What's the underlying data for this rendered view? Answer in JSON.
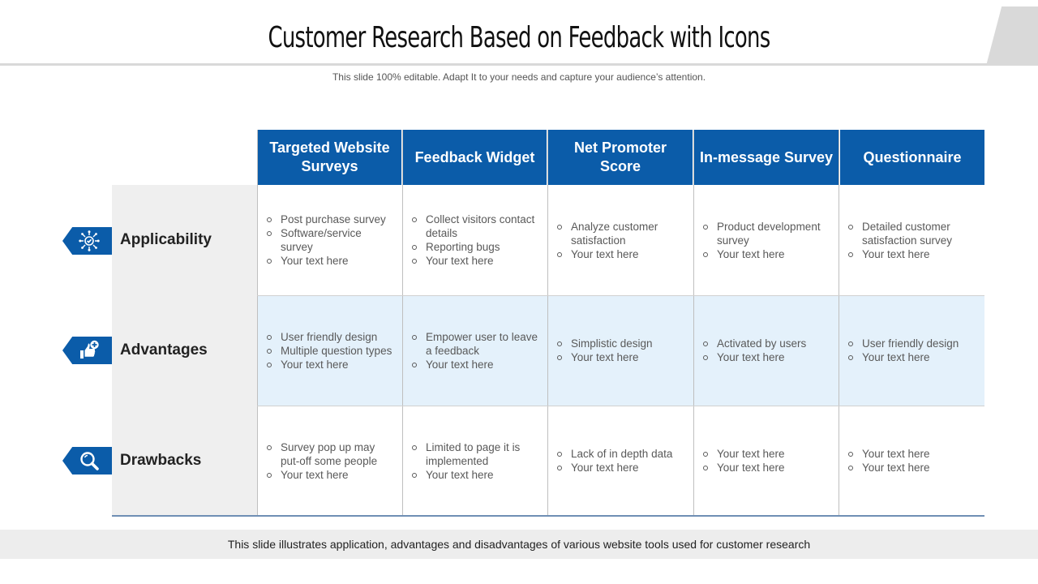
{
  "title": "Customer Research Based on Feedback with Icons",
  "subtitle": "This slide 100% editable. Adapt  It to your needs and capture your audience’s attention.",
  "columns": [
    "Targeted Website Surveys",
    "Feedback Widget",
    "Net Promoter Score",
    "In-message Survey",
    "Questionnaire"
  ],
  "rows": [
    {
      "label": "Applicability",
      "icon": "target-network-icon",
      "cells": [
        [
          "Post purchase survey",
          "Software/service survey",
          "Your text here"
        ],
        [
          "Collect visitors contact details",
          "Reporting bugs",
          "Your text here"
        ],
        [
          "Analyze customer satisfaction",
          "Your text here"
        ],
        [
          "Product development survey",
          "Your text here"
        ],
        [
          "Detailed customer satisfaction survey",
          "Your text here"
        ]
      ]
    },
    {
      "label": "Advantages",
      "icon": "thumbs-up-plus-icon",
      "cells": [
        [
          "User friendly design",
          "Multiple question types",
          "Your text here"
        ],
        [
          "Empower user to leave a feedback",
          "Your text here"
        ],
        [
          "Simplistic design",
          "Your text here"
        ],
        [
          "Activated by users",
          "Your text here"
        ],
        [
          "User friendly design",
          "Your text here"
        ]
      ]
    },
    {
      "label": "Drawbacks",
      "icon": "magnifier-icon",
      "cells": [
        [
          "Survey pop up may put-off some people",
          "Your text here"
        ],
        [
          "Limited to page it is implemented",
          "Your text here"
        ],
        [
          "Lack of in depth data",
          "Your text here"
        ],
        [
          "Your text here",
          "Your text here"
        ],
        [
          "Your text here",
          "Your text here"
        ]
      ]
    }
  ],
  "footer": "This slide illustrates application, advantages and disadvantages of various website tools used for customer research",
  "colors": {
    "accent": "#0b5ca9",
    "band": "#e4f1fb",
    "label_bg": "#efefef"
  }
}
